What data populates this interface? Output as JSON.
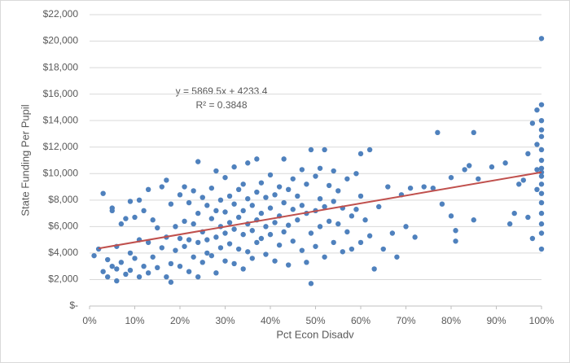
{
  "chart_data": {
    "type": "scatter",
    "annotations": [
      "y = 5869.5x + 4233.4",
      "R² = 0.3848"
    ],
    "x_label": "Pct Econ Disadv",
    "y_label": "State Funding Per Pupil",
    "color": "#4f81bd",
    "grid": true,
    "xlim": [
      0,
      100
    ],
    "xticks": [
      {
        "value": 0,
        "label": "0%"
      },
      {
        "value": 10,
        "label": "10%"
      },
      {
        "value": 20,
        "label": "20%"
      },
      {
        "value": 30,
        "label": "30%"
      },
      {
        "value": 40,
        "label": "40%"
      },
      {
        "value": 50,
        "label": "50%"
      },
      {
        "value": 60,
        "label": "60%"
      },
      {
        "value": 70,
        "label": "70%"
      },
      {
        "value": 80,
        "label": "80%"
      },
      {
        "value": 90,
        "label": "90%"
      },
      {
        "value": 100,
        "label": "100%"
      }
    ],
    "ylim": [
      0,
      22000
    ],
    "yticks": [
      {
        "value": 0,
        "label": "$-"
      },
      {
        "value": 2000,
        "label": "$2,000"
      },
      {
        "value": 4000,
        "label": "$4,000"
      },
      {
        "value": 6000,
        "label": "$6,000"
      },
      {
        "value": 8000,
        "label": "$8,000"
      },
      {
        "value": 10000,
        "label": "$10,000"
      },
      {
        "value": 12000,
        "label": "$12,000"
      },
      {
        "value": 14000,
        "label": "$14,000"
      },
      {
        "value": 16000,
        "label": "$16,000"
      },
      {
        "value": 18000,
        "label": "$18,000"
      },
      {
        "value": 20000,
        "label": "$20,000"
      },
      {
        "value": 22000,
        "label": "$22,000"
      }
    ],
    "trendline": {
      "color": "#c0504d",
      "x": [
        2,
        100
      ],
      "values": [
        4350,
        10100
      ]
    },
    "x": [
      1,
      2,
      3,
      3,
      4,
      4,
      5,
      5,
      5,
      6,
      6,
      6,
      7,
      7,
      8,
      8,
      9,
      9,
      9,
      10,
      10,
      11,
      11,
      11,
      12,
      12,
      13,
      13,
      13,
      14,
      14,
      15,
      15,
      16,
      16,
      17,
      17,
      17,
      18,
      18,
      18,
      19,
      19,
      20,
      20,
      20,
      21,
      21,
      21,
      22,
      22,
      22,
      23,
      23,
      23,
      24,
      24,
      24,
      24,
      25,
      25,
      25,
      26,
      26,
      26,
      27,
      27,
      27,
      28,
      28,
      28,
      28,
      29,
      29,
      29,
      30,
      30,
      30,
      30,
      31,
      31,
      31,
      32,
      32,
      32,
      32,
      33,
      33,
      33,
      34,
      34,
      34,
      34,
      35,
      35,
      35,
      35,
      36,
      36,
      36,
      37,
      37,
      37,
      37,
      38,
      38,
      38,
      39,
      39,
      39,
      40,
      40,
      40,
      41,
      41,
      41,
      42,
      42,
      42,
      43,
      43,
      43,
      44,
      44,
      44,
      45,
      45,
      45,
      46,
      46,
      47,
      47,
      47,
      48,
      48,
      48,
      49,
      49,
      49,
      50,
      50,
      50,
      51,
      51,
      51,
      52,
      52,
      52,
      53,
      53,
      54,
      54,
      54,
      55,
      55,
      56,
      56,
      57,
      57,
      58,
      58,
      59,
      59,
      60,
      60,
      60,
      61,
      62,
      62,
      63,
      64,
      65,
      66,
      67,
      68,
      69,
      70,
      71,
      72,
      74,
      76,
      77,
      78,
      80,
      80,
      81,
      81,
      83,
      84,
      85,
      85,
      86,
      89,
      92,
      93,
      94,
      95,
      96,
      97,
      97,
      98,
      98,
      99,
      99,
      99,
      99,
      100,
      100,
      100,
      100,
      100,
      100,
      100,
      100,
      100,
      100,
      100,
      100,
      100,
      100,
      100,
      100,
      100
    ],
    "values": [
      3800,
      4300,
      8500,
      2600,
      3500,
      2200,
      7200,
      7400,
      3000,
      1900,
      4500,
      2800,
      6200,
      3300,
      6600,
      2400,
      7900,
      4000,
      2700,
      6700,
      3600,
      8000,
      5000,
      2200,
      7200,
      3000,
      8800,
      4800,
      2500,
      6500,
      3700,
      5900,
      2900,
      9000,
      4400,
      9500,
      5200,
      2200,
      7700,
      3200,
      1800,
      6000,
      4200,
      8400,
      5100,
      3000,
      9000,
      6400,
      4500,
      7800,
      5000,
      2600,
      8700,
      6200,
      3700,
      10900,
      7000,
      4800,
      2200,
      8200,
      5600,
      3300,
      7600,
      5000,
      4000,
      8900,
      6600,
      3800,
      10200,
      7200,
      5200,
      2500,
      8000,
      6000,
      4400,
      9700,
      7100,
      5500,
      3400,
      8300,
      6300,
      4700,
      10500,
      7700,
      5800,
      3200,
      8800,
      6700,
      4300,
      9200,
      7200,
      5400,
      2800,
      10800,
      8100,
      6200,
      4100,
      7600,
      5700,
      3600,
      11100,
      8600,
      6500,
      4800,
      9300,
      7000,
      5100,
      8200,
      6000,
      3900,
      9900,
      7400,
      5400,
      8400,
      6300,
      3400,
      9000,
      6800,
      4600,
      11100,
      7800,
      5600,
      8800,
      6100,
      3100,
      9600,
      7300,
      4900,
      8300,
      6500,
      10300,
      7600,
      4200,
      9200,
      7000,
      3300,
      11800,
      1700,
      5500,
      9800,
      7200,
      4500,
      10400,
      8100,
      6000,
      11800,
      7500,
      3700,
      9100,
      6400,
      10200,
      7900,
      4800,
      8700,
      6200,
      7400,
      4100,
      9600,
      5600,
      6800,
      4300,
      10000,
      7300,
      11500,
      8300,
      4800,
      6500,
      11800,
      5300,
      2800,
      7500,
      4300,
      9000,
      5500,
      3700,
      8400,
      6000,
      8900,
      5200,
      9000,
      8900,
      13100,
      7700,
      9700,
      6800,
      4900,
      5700,
      10300,
      10600,
      13100,
      6500,
      9600,
      10500,
      10800,
      6200,
      7000,
      9200,
      9500,
      11500,
      6700,
      13800,
      5100,
      10300,
      14800,
      8800,
      12200,
      20200,
      15200,
      14000,
      12800,
      11800,
      11000,
      10400,
      9800,
      9200,
      8500,
      7800,
      7000,
      6200,
      5500,
      4300,
      13300,
      10100
    ]
  }
}
